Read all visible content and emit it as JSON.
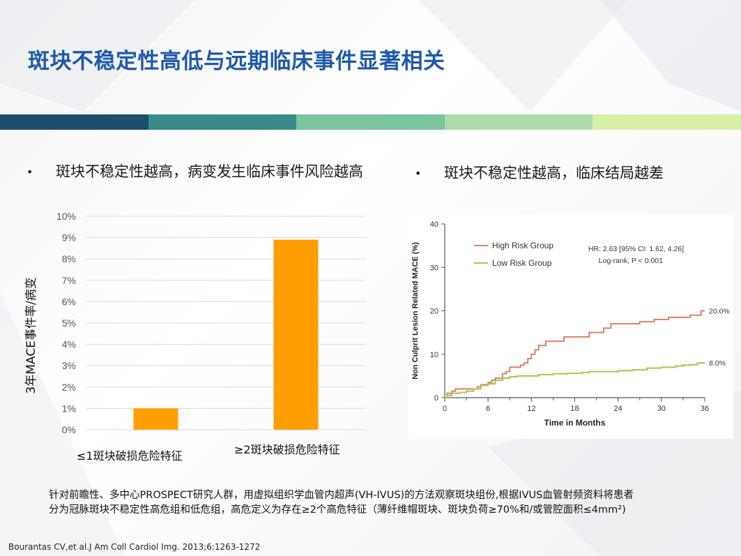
{
  "title": "斑块不稳定性高低与远期临床事件显著相关",
  "band_colors": [
    "#1d4e6e",
    "#3a8a8a",
    "#7cc39f",
    "#aedba9",
    "#d6f0a8"
  ],
  "bullets": {
    "left": "斑块不稳定性越高，病变发生临床事件风险越高",
    "right": "斑块不稳定性越高，临床结局越差"
  },
  "note": {
    "line1": "针对前瞻性、多中心PROSPECT研究人群，用虚拟组织学血管内超声(VH-IVUS)的方法观察斑块组份,根据IVUS血管射频资料将患者",
    "line2": "分为冠脉斑块不稳定性高危组和低危组，高危定义为存在≥2个高危特征（薄纤维帽斑块、斑块负荷≥70%和/或管腔面积≤4mm²)"
  },
  "citation": "Bourantas  CV,et al.J Am Coll Cardiol Img. 2013;6:1263-1272",
  "chart_data": [
    {
      "type": "bar",
      "categories": [
        "≤1斑块破损危险特征",
        "≥2斑块破损危险特征"
      ],
      "values": [
        1.0,
        8.9
      ],
      "ylabel": "3年MACE事件率/病变",
      "ylim": [
        0,
        10
      ],
      "yticks": [
        "0%",
        "1%",
        "2%",
        "3%",
        "4%",
        "5%",
        "6%",
        "7%",
        "8%",
        "9%",
        "10%"
      ],
      "bar_color": "#ff9e00",
      "grid": true
    },
    {
      "type": "line",
      "xlabel": "Time in Months",
      "ylabel": "Non Culprit Lesion Related MACE (%)",
      "xlim": [
        0,
        36
      ],
      "ylim": [
        0,
        40
      ],
      "xticks": [
        "0",
        "6",
        "12",
        "18",
        "24",
        "30",
        "36"
      ],
      "yticks": [
        "0",
        "10",
        "20",
        "30",
        "40"
      ],
      "annotation_hr": "HR: 2.63 [95% CI: 1.62, 4.26]",
      "annotation_p": "Log-rank, P < 0.001",
      "legend_position": "top-left",
      "series": [
        {
          "name": "High Risk Group",
          "color": "#d9826a",
          "end_label": "20.0%",
          "points": [
            [
              0,
              0
            ],
            [
              0.3,
              1
            ],
            [
              1,
              1.5
            ],
            [
              1.5,
              2
            ],
            [
              3,
              2
            ],
            [
              4,
              2
            ],
            [
              4.5,
              2.5
            ],
            [
              5,
              3
            ],
            [
              6,
              3.5
            ],
            [
              6.5,
              4
            ],
            [
              7,
              4.5
            ],
            [
              8,
              5.5
            ],
            [
              8.5,
              6
            ],
            [
              9,
              7
            ],
            [
              10,
              7
            ],
            [
              10.5,
              7.5
            ],
            [
              11,
              8
            ],
            [
              11.5,
              9
            ],
            [
              12,
              10
            ],
            [
              12.5,
              11
            ],
            [
              13,
              12
            ],
            [
              14,
              13
            ],
            [
              15,
              13
            ],
            [
              16,
              13
            ],
            [
              16.5,
              14
            ],
            [
              17,
              14
            ],
            [
              18,
              14
            ],
            [
              19,
              14
            ],
            [
              20,
              15
            ],
            [
              21,
              15
            ],
            [
              22,
              16
            ],
            [
              23,
              17
            ],
            [
              24,
              17
            ],
            [
              26,
              17
            ],
            [
              27,
              17.5
            ],
            [
              28,
              17.5
            ],
            [
              29,
              18
            ],
            [
              31,
              18.5
            ],
            [
              33,
              18.5
            ],
            [
              34,
              19
            ],
            [
              35,
              19
            ],
            [
              35.5,
              20
            ],
            [
              36,
              20
            ]
          ]
        },
        {
          "name": "Low Risk Group",
          "color": "#a9c64c",
          "end_label": "8.0%",
          "points": [
            [
              0,
              0
            ],
            [
              0.3,
              0.5
            ],
            [
              1,
              1
            ],
            [
              2,
              1.2
            ],
            [
              3,
              1.5
            ],
            [
              4,
              2
            ],
            [
              5,
              2.8
            ],
            [
              6,
              3.2
            ],
            [
              7,
              4
            ],
            [
              8,
              4.5
            ],
            [
              9,
              4.8
            ],
            [
              10,
              5
            ],
            [
              11,
              5
            ],
            [
              12,
              5
            ],
            [
              13,
              5.3
            ],
            [
              15,
              5.5
            ],
            [
              17,
              5.6
            ],
            [
              19,
              5.8
            ],
            [
              20,
              6
            ],
            [
              22,
              6
            ],
            [
              24,
              6.2
            ],
            [
              26,
              6.4
            ],
            [
              28,
              6.8
            ],
            [
              30,
              7
            ],
            [
              32,
              7.3
            ],
            [
              33,
              7.5
            ],
            [
              34,
              7.6
            ],
            [
              35,
              8
            ],
            [
              36,
              8
            ]
          ]
        }
      ]
    }
  ]
}
